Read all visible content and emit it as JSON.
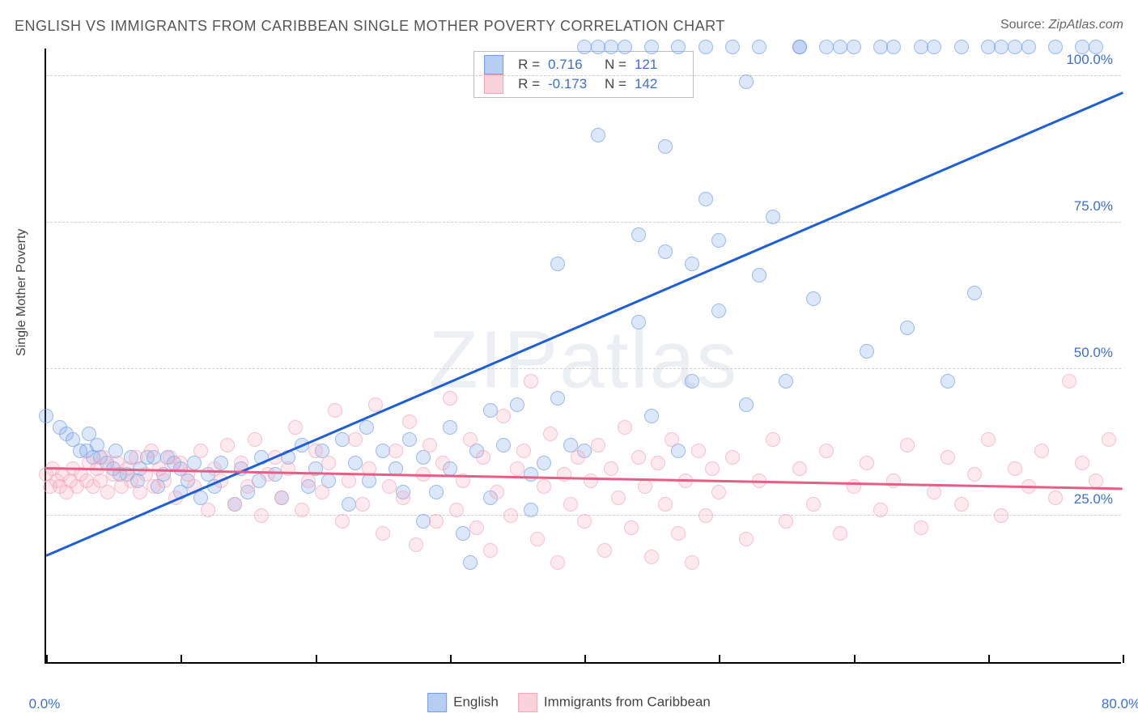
{
  "title": "ENGLISH VS IMMIGRANTS FROM CARIBBEAN SINGLE MOTHER POVERTY CORRELATION CHART",
  "source_label": "Source:",
  "source_value": "ZipAtlas.com",
  "watermark": "ZIPatlas",
  "y_axis_label": "Single Mother Poverty",
  "chart": {
    "type": "scatter",
    "background_color": "#ffffff",
    "grid_color": "#d0d0d0",
    "axis_color": "#000000",
    "tick_label_color": "#3a6fd8",
    "xlim": [
      0,
      80
    ],
    "ylim": [
      0,
      105
    ],
    "x_ticks": [
      0,
      10,
      20,
      30,
      40,
      50,
      60,
      70,
      80
    ],
    "x_tick_labels_shown": {
      "0": "0.0%",
      "80": "80.0%"
    },
    "y_ticks": [
      25,
      50,
      75,
      100
    ],
    "y_tick_labels": {
      "25": "25.0%",
      "50": "50.0%",
      "75": "75.0%",
      "100": "100.0%"
    },
    "marker_radius": 9,
    "marker_border_width": 1.5,
    "marker_fill_opacity": 0.35,
    "series": [
      {
        "name": "English",
        "color": "#6f9de8",
        "line_color": "#1e5fd6",
        "r_value": "0.716",
        "n_value": "121",
        "trend": {
          "x1": 0,
          "y1": 18,
          "x2": 80,
          "y2": 97
        },
        "points": [
          [
            0,
            42
          ],
          [
            1,
            40
          ],
          [
            1.5,
            39
          ],
          [
            2,
            38
          ],
          [
            2.5,
            36
          ],
          [
            3,
            36
          ],
          [
            3.2,
            39
          ],
          [
            3.5,
            35
          ],
          [
            3.8,
            37
          ],
          [
            4,
            35
          ],
          [
            4.5,
            34
          ],
          [
            5,
            33
          ],
          [
            5.2,
            36
          ],
          [
            5.5,
            32
          ],
          [
            6,
            32
          ],
          [
            6.3,
            35
          ],
          [
            6.8,
            31
          ],
          [
            7,
            33
          ],
          [
            7.5,
            35
          ],
          [
            8,
            35
          ],
          [
            8.3,
            30
          ],
          [
            8.7,
            32
          ],
          [
            9,
            35
          ],
          [
            9.5,
            34
          ],
          [
            10,
            29
          ],
          [
            10,
            33
          ],
          [
            10.5,
            31
          ],
          [
            11,
            34
          ],
          [
            11.5,
            28
          ],
          [
            12,
            32
          ],
          [
            12.5,
            30
          ],
          [
            13,
            34
          ],
          [
            14,
            27
          ],
          [
            14.5,
            33
          ],
          [
            15,
            29
          ],
          [
            15.8,
            31
          ],
          [
            16,
            35
          ],
          [
            17,
            32
          ],
          [
            17.5,
            28
          ],
          [
            18,
            35
          ],
          [
            19,
            37
          ],
          [
            19.5,
            30
          ],
          [
            20,
            33
          ],
          [
            20.5,
            36
          ],
          [
            21,
            31
          ],
          [
            22,
            38
          ],
          [
            22.5,
            27
          ],
          [
            23,
            34
          ],
          [
            23.8,
            40
          ],
          [
            24,
            31
          ],
          [
            25,
            36
          ],
          [
            26,
            33
          ],
          [
            26.5,
            29
          ],
          [
            27,
            38
          ],
          [
            28,
            24
          ],
          [
            28,
            35
          ],
          [
            29,
            29
          ],
          [
            30,
            40
          ],
          [
            30,
            33
          ],
          [
            31,
            22
          ],
          [
            31.5,
            17
          ],
          [
            32,
            36
          ],
          [
            33,
            28
          ],
          [
            33,
            43
          ],
          [
            34,
            37
          ],
          [
            35,
            44
          ],
          [
            36,
            26
          ],
          [
            36,
            32
          ],
          [
            37,
            34
          ],
          [
            38,
            68
          ],
          [
            38,
            45
          ],
          [
            39,
            37
          ],
          [
            40,
            105
          ],
          [
            40,
            36
          ],
          [
            41,
            90
          ],
          [
            41,
            105
          ],
          [
            42,
            105
          ],
          [
            43,
            105
          ],
          [
            44,
            73
          ],
          [
            44,
            58
          ],
          [
            45,
            42
          ],
          [
            45,
            105
          ],
          [
            46,
            88
          ],
          [
            46,
            70
          ],
          [
            47,
            36
          ],
          [
            47,
            105
          ],
          [
            48,
            68
          ],
          [
            48,
            48
          ],
          [
            49,
            105
          ],
          [
            49,
            79
          ],
          [
            50,
            72
          ],
          [
            50,
            60
          ],
          [
            51,
            105
          ],
          [
            52,
            44
          ],
          [
            52,
            99
          ],
          [
            53,
            105
          ],
          [
            53,
            66
          ],
          [
            54,
            76
          ],
          [
            55,
            48
          ],
          [
            56,
            105
          ],
          [
            56,
            105
          ],
          [
            57,
            62
          ],
          [
            58,
            105
          ],
          [
            59,
            105
          ],
          [
            60,
            105
          ],
          [
            61,
            53
          ],
          [
            62,
            105
          ],
          [
            63,
            105
          ],
          [
            64,
            57
          ],
          [
            65,
            105
          ],
          [
            66,
            105
          ],
          [
            67,
            48
          ],
          [
            68,
            105
          ],
          [
            69,
            63
          ],
          [
            70,
            105
          ],
          [
            71,
            105
          ],
          [
            72,
            105
          ],
          [
            73,
            105
          ],
          [
            75,
            105
          ],
          [
            77,
            105
          ],
          [
            78,
            105
          ]
        ]
      },
      {
        "name": "Immigrants from Caribbean",
        "color": "#f4a6b8",
        "line_color": "#e85d85",
        "r_value": "-0.173",
        "n_value": "142",
        "trend": {
          "x1": 0,
          "y1": 33,
          "x2": 80,
          "y2": 29.5
        },
        "points": [
          [
            0,
            32
          ],
          [
            0.3,
            30
          ],
          [
            0.5,
            33
          ],
          [
            0.8,
            31
          ],
          [
            1,
            30
          ],
          [
            1.2,
            32
          ],
          [
            1.5,
            29
          ],
          [
            1.8,
            31
          ],
          [
            2,
            33
          ],
          [
            2.3,
            30
          ],
          [
            2.6,
            32
          ],
          [
            3,
            31
          ],
          [
            3.2,
            34
          ],
          [
            3.5,
            30
          ],
          [
            3.8,
            33
          ],
          [
            4,
            31
          ],
          [
            4.3,
            35
          ],
          [
            4.6,
            29
          ],
          [
            5,
            32
          ],
          [
            5.3,
            34
          ],
          [
            5.6,
            30
          ],
          [
            6,
            33
          ],
          [
            6.3,
            31
          ],
          [
            6.7,
            35
          ],
          [
            7,
            29
          ],
          [
            7.4,
            32
          ],
          [
            7.8,
            36
          ],
          [
            8,
            30
          ],
          [
            8.4,
            33
          ],
          [
            8.8,
            31
          ],
          [
            9.2,
            35
          ],
          [
            9.6,
            28
          ],
          [
            10,
            34
          ],
          [
            10.5,
            32
          ],
          [
            11,
            30
          ],
          [
            11.5,
            36
          ],
          [
            12,
            26
          ],
          [
            12.5,
            33
          ],
          [
            13,
            31
          ],
          [
            13.5,
            37
          ],
          [
            14,
            27
          ],
          [
            14.5,
            34
          ],
          [
            15,
            30
          ],
          [
            15.5,
            38
          ],
          [
            16,
            25
          ],
          [
            16.5,
            32
          ],
          [
            17,
            35
          ],
          [
            17.5,
            28
          ],
          [
            18,
            33
          ],
          [
            18.5,
            40
          ],
          [
            19,
            26
          ],
          [
            19.5,
            31
          ],
          [
            20,
            36
          ],
          [
            20.5,
            29
          ],
          [
            21,
            34
          ],
          [
            21.5,
            43
          ],
          [
            22,
            24
          ],
          [
            22.5,
            31
          ],
          [
            23,
            38
          ],
          [
            23.5,
            27
          ],
          [
            24,
            33
          ],
          [
            24.5,
            44
          ],
          [
            25,
            22
          ],
          [
            25.5,
            30
          ],
          [
            26,
            36
          ],
          [
            26.5,
            28
          ],
          [
            27,
            41
          ],
          [
            27.5,
            20
          ],
          [
            28,
            32
          ],
          [
            28.5,
            37
          ],
          [
            29,
            24
          ],
          [
            29.5,
            34
          ],
          [
            30,
            45
          ],
          [
            30.5,
            26
          ],
          [
            31,
            31
          ],
          [
            31.5,
            38
          ],
          [
            32,
            23
          ],
          [
            32.5,
            35
          ],
          [
            33,
            19
          ],
          [
            33.5,
            29
          ],
          [
            34,
            42
          ],
          [
            34.5,
            25
          ],
          [
            35,
            33
          ],
          [
            35.5,
            36
          ],
          [
            36,
            48
          ],
          [
            36.5,
            21
          ],
          [
            37,
            30
          ],
          [
            37.5,
            39
          ],
          [
            38,
            17
          ],
          [
            38.5,
            32
          ],
          [
            39,
            27
          ],
          [
            39.5,
            35
          ],
          [
            40,
            24
          ],
          [
            40.5,
            31
          ],
          [
            41,
            37
          ],
          [
            41.5,
            19
          ],
          [
            42,
            33
          ],
          [
            42.5,
            28
          ],
          [
            43,
            40
          ],
          [
            43.5,
            23
          ],
          [
            44,
            35
          ],
          [
            44.5,
            30
          ],
          [
            45,
            18
          ],
          [
            45.5,
            34
          ],
          [
            46,
            27
          ],
          [
            46.5,
            38
          ],
          [
            47,
            22
          ],
          [
            47.5,
            31
          ],
          [
            48,
            17
          ],
          [
            48.5,
            36
          ],
          [
            49,
            25
          ],
          [
            49.5,
            33
          ],
          [
            50,
            29
          ],
          [
            51,
            35
          ],
          [
            52,
            21
          ],
          [
            53,
            31
          ],
          [
            54,
            38
          ],
          [
            55,
            24
          ],
          [
            56,
            33
          ],
          [
            57,
            27
          ],
          [
            58,
            36
          ],
          [
            59,
            22
          ],
          [
            60,
            30
          ],
          [
            61,
            34
          ],
          [
            62,
            26
          ],
          [
            63,
            31
          ],
          [
            64,
            37
          ],
          [
            65,
            23
          ],
          [
            66,
            29
          ],
          [
            67,
            35
          ],
          [
            68,
            27
          ],
          [
            69,
            32
          ],
          [
            70,
            38
          ],
          [
            71,
            25
          ],
          [
            72,
            33
          ],
          [
            73,
            30
          ],
          [
            74,
            36
          ],
          [
            75,
            28
          ],
          [
            76,
            48
          ],
          [
            77,
            34
          ],
          [
            78,
            31
          ],
          [
            79,
            38
          ]
        ]
      }
    ]
  },
  "bottom_legend": [
    {
      "label": "English",
      "fill": "rgba(111,157,232,0.5)",
      "border": "#6f9de8"
    },
    {
      "label": "Immigrants from Caribbean",
      "fill": "rgba(244,166,184,0.5)",
      "border": "#f4a6b8"
    }
  ]
}
